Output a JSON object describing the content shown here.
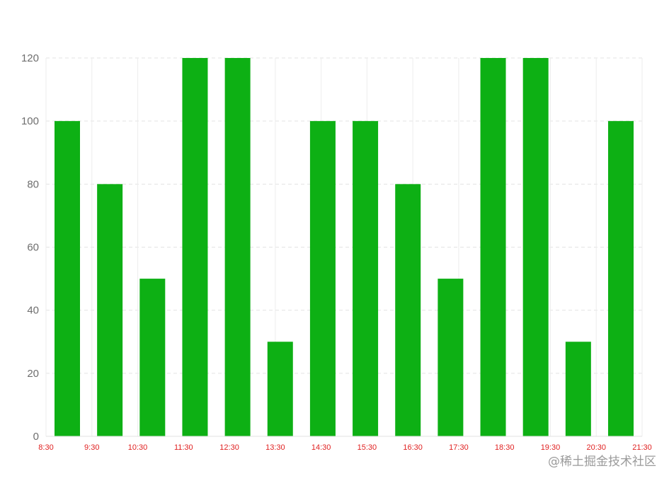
{
  "chart_data": {
    "type": "bar",
    "title": "",
    "xlabel": "",
    "ylabel": "",
    "x_ticks": [
      "8:30",
      "9:30",
      "10:30",
      "11:30",
      "12:30",
      "13:30",
      "14:30",
      "15:30",
      "16:30",
      "17:30",
      "18:30",
      "19:30",
      "20:30",
      "21:30"
    ],
    "values": [
      100,
      80,
      50,
      120,
      120,
      30,
      100,
      100,
      80,
      50,
      120,
      120,
      30,
      100
    ],
    "ylim": [
      0,
      120
    ],
    "y_ticks": [
      0,
      20,
      40,
      60,
      80,
      100,
      120
    ],
    "grid": true,
    "bar_color": "#0db014",
    "x_tick_color": "#e02020",
    "y_tick_color": "#6e6e6e"
  },
  "watermark": "@稀土掘金技术社区"
}
